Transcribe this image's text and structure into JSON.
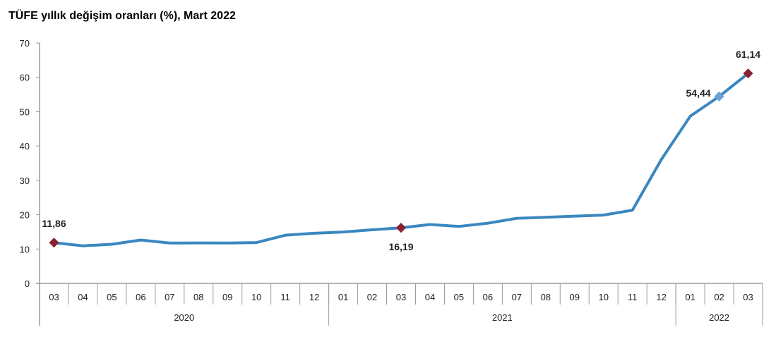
{
  "chart_data": {
    "type": "line",
    "title": "TÜFE yıllık değişim oranları (%), Mart 2022",
    "xlabel": "",
    "ylabel": "",
    "ylim": [
      0,
      70
    ],
    "yticks": [
      0,
      10,
      20,
      30,
      40,
      50,
      60,
      70
    ],
    "grid": false,
    "categories": [
      "03",
      "04",
      "05",
      "06",
      "07",
      "08",
      "09",
      "10",
      "11",
      "12",
      "01",
      "02",
      "03",
      "04",
      "05",
      "06",
      "07",
      "08",
      "09",
      "10",
      "11",
      "12",
      "01",
      "02",
      "03"
    ],
    "years": [
      {
        "label": "2020",
        "start": 0,
        "end": 9
      },
      {
        "label": "2021",
        "start": 10,
        "end": 21
      },
      {
        "label": "2022",
        "start": 22,
        "end": 24
      }
    ],
    "series": [
      {
        "values": [
          11.86,
          10.94,
          11.39,
          12.62,
          11.76,
          11.77,
          11.75,
          11.89,
          14.03,
          14.6,
          14.97,
          15.61,
          16.19,
          17.14,
          16.59,
          17.53,
          18.95,
          19.25,
          19.58,
          19.89,
          21.31,
          36.08,
          48.69,
          54.44,
          61.14
        ],
        "color": "#3a87c0"
      }
    ],
    "annotations": [
      {
        "index": 0,
        "label": "11,86",
        "marker_color": "#8b2232",
        "position": "above"
      },
      {
        "index": 12,
        "label": "16,19",
        "marker_color": "#8b2232",
        "position": "below"
      },
      {
        "index": 23,
        "label": "54,44",
        "marker_color": "#6a9fd8",
        "position": "left"
      },
      {
        "index": 24,
        "label": "61,14",
        "marker_color": "#8b2232",
        "position": "above"
      }
    ]
  }
}
